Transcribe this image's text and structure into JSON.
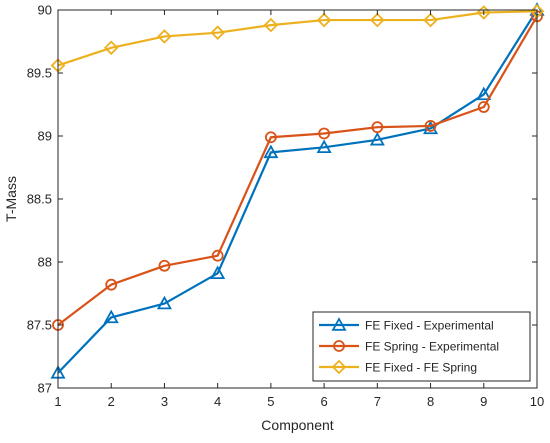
{
  "chart_data": {
    "type": "line",
    "title": "",
    "xlabel": "Component",
    "ylabel": "T-Mass",
    "x": [
      1,
      2,
      3,
      4,
      5,
      6,
      7,
      8,
      9,
      10
    ],
    "xlim": [
      1,
      10
    ],
    "ylim": [
      87,
      90
    ],
    "xticks": [
      1,
      2,
      3,
      4,
      5,
      6,
      7,
      8,
      9,
      10
    ],
    "yticks": [
      87,
      87.5,
      88,
      88.5,
      89,
      89.5,
      90
    ],
    "grid": false,
    "legend_position": "bottom-right",
    "series": [
      {
        "name": "FE Fixed - Experimental",
        "color": "#0072BD",
        "marker": "triangle",
        "values": [
          87.12,
          87.56,
          87.67,
          87.91,
          88.87,
          88.91,
          88.97,
          89.06,
          89.33,
          90.0
        ]
      },
      {
        "name": "FE Spring - Experimental",
        "color": "#D95319",
        "marker": "circle",
        "values": [
          87.5,
          87.82,
          87.97,
          88.05,
          88.99,
          89.02,
          89.07,
          89.08,
          89.23,
          89.95
        ]
      },
      {
        "name": "FE Fixed - FE Spring",
        "color": "#EDB120",
        "marker": "diamond",
        "values": [
          89.56,
          89.7,
          89.79,
          89.82,
          89.88,
          89.92,
          89.92,
          89.92,
          89.98,
          89.99
        ]
      }
    ]
  }
}
